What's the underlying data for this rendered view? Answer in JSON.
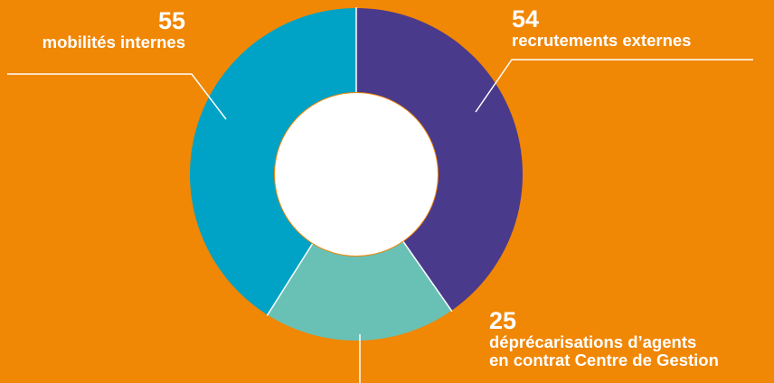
{
  "background_color": "#F08705",
  "chart_data": {
    "type": "pie",
    "variant": "donut",
    "slices": [
      {
        "value": 54,
        "label": "recrutements externes",
        "color": "#4A3A8C"
      },
      {
        "value": 25,
        "label": "déprécarisations d’agents en contrat Centre de Gestion",
        "label_lines": [
          "déprécarisations d’agents",
          "en contrat Centre de Gestion"
        ],
        "color": "#69C1B5"
      },
      {
        "value": 55,
        "label": "mobilités internes",
        "color": "#00A3C5"
      }
    ],
    "data_labels": {
      "recrutements": {
        "value": "54",
        "text": "recrutements externes"
      },
      "deprecarisations": {
        "value": "25",
        "line1": "déprécarisations d’agents",
        "line2": "en contrat Centre de Gestion"
      },
      "mobilites": {
        "value": "55",
        "text": "mobilités internes"
      }
    }
  }
}
